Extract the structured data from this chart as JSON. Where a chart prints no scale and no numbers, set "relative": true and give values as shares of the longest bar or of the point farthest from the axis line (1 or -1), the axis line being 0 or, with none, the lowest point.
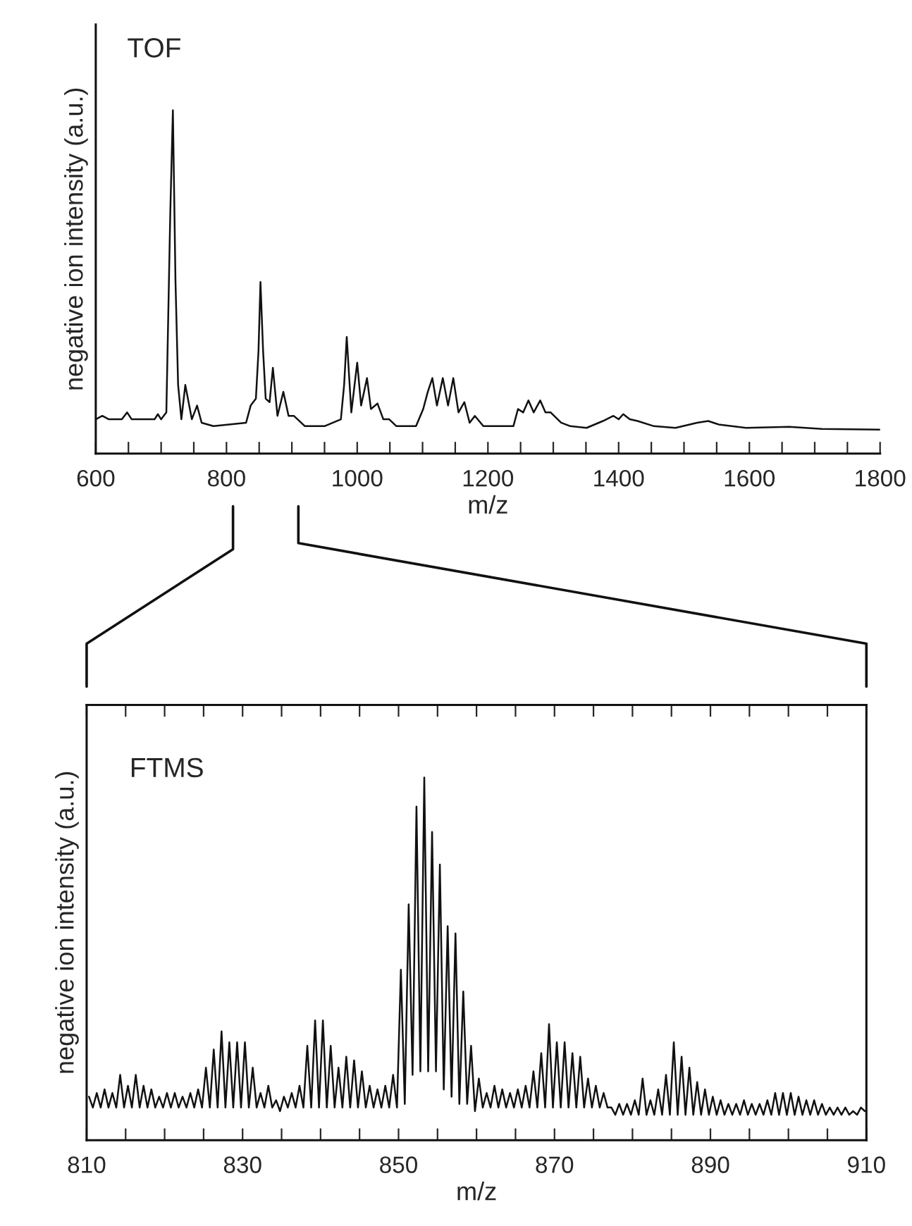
{
  "chart_data": [
    {
      "type": "line",
      "title": "TOF",
      "xlabel": "m/z",
      "ylabel": "negative ion intensity (a.u.)",
      "relative": true,
      "xlim": [
        600,
        1800
      ],
      "xticks": [
        600,
        {
          "value": 650,
          "label": null
        },
        {
          "value": 700,
          "label": null
        },
        {
          "value": 750,
          "label": null
        },
        800,
        {
          "value": 850,
          "label": null
        },
        {
          "value": 900,
          "label": null
        },
        {
          "value": 950,
          "label": null
        },
        1000,
        {
          "value": 1050,
          "label": null
        },
        {
          "value": 1100,
          "label": null
        },
        {
          "value": 1150,
          "label": null
        },
        1200,
        {
          "value": 1250,
          "label": null
        },
        {
          "value": 1300,
          "label": null
        },
        {
          "value": 1350,
          "label": null
        },
        1400,
        {
          "value": 1450,
          "label": null
        },
        {
          "value": 1500,
          "label": null
        },
        {
          "value": 1550,
          "label": null
        },
        1600,
        {
          "value": 1650,
          "label": null
        },
        {
          "value": 1700,
          "label": null
        },
        {
          "value": 1750,
          "label": null
        },
        1800
      ],
      "series": [
        {
          "color": "#111111",
          "x": [
            600,
            610,
            620,
            640,
            648,
            655,
            690,
            695,
            700,
            708,
            714,
            718,
            722,
            726,
            731,
            737,
            747,
            755,
            762,
            780,
            830,
            837,
            845,
            849,
            852,
            856,
            860,
            866,
            871,
            878,
            887,
            895,
            903,
            920,
            950,
            975,
            980,
            984,
            991,
            1000,
            1006,
            1015,
            1021,
            1031,
            1040,
            1049,
            1060,
            1090,
            1101,
            1108,
            1115,
            1122,
            1131,
            1139,
            1147,
            1155,
            1164,
            1172,
            1180,
            1193,
            1239,
            1246,
            1254,
            1262,
            1270,
            1280,
            1288,
            1296,
            1312,
            1326,
            1351,
            1376,
            1392,
            1400,
            1407,
            1417,
            1429,
            1454,
            1487,
            1520,
            1537,
            1553,
            1595,
            1661,
            1711,
            1800
          ],
          "values": [
            0.1,
            0.11,
            0.1,
            0.1,
            0.12,
            0.1,
            0.1,
            0.115,
            0.1,
            0.12,
            0.7,
            1.0,
            0.5,
            0.2,
            0.1,
            0.2,
            0.1,
            0.14,
            0.09,
            0.08,
            0.09,
            0.14,
            0.16,
            0.3,
            0.5,
            0.3,
            0.16,
            0.15,
            0.25,
            0.11,
            0.18,
            0.11,
            0.11,
            0.08,
            0.08,
            0.1,
            0.2,
            0.34,
            0.12,
            0.265,
            0.14,
            0.22,
            0.13,
            0.146,
            0.1,
            0.1,
            0.08,
            0.08,
            0.13,
            0.18,
            0.22,
            0.14,
            0.22,
            0.14,
            0.22,
            0.12,
            0.15,
            0.09,
            0.11,
            0.08,
            0.08,
            0.13,
            0.12,
            0.155,
            0.12,
            0.155,
            0.12,
            0.12,
            0.09,
            0.08,
            0.075,
            0.095,
            0.11,
            0.1,
            0.115,
            0.1,
            0.095,
            0.08,
            0.075,
            0.09,
            0.095,
            0.085,
            0.075,
            0.078,
            0.072,
            0.07
          ]
        }
      ]
    },
    {
      "type": "line",
      "title": "FTMS",
      "xlabel": "m/z",
      "ylabel": "negative ion intensity (a.u.)",
      "relative": true,
      "xlim": [
        810,
        910
      ],
      "xticks": [
        810,
        {
          "value": 815,
          "label": null
        },
        {
          "value": 820,
          "label": null
        },
        {
          "value": 825,
          "label": null
        },
        830,
        {
          "value": 835,
          "label": null
        },
        {
          "value": 840,
          "label": null
        },
        {
          "value": 845,
          "label": null
        },
        850,
        {
          "value": 855,
          "label": null
        },
        {
          "value": 860,
          "label": null
        },
        {
          "value": 865,
          "label": null
        },
        870,
        {
          "value": 875,
          "label": null
        },
        {
          "value": 880,
          "label": null
        },
        {
          "value": 885,
          "label": null
        },
        890,
        {
          "value": 895,
          "label": null
        },
        {
          "value": 900,
          "label": null
        },
        {
          "value": 905,
          "label": null
        },
        910
      ],
      "series": [
        {
          "color": "#111111",
          "x": [
            810.3,
            810.8,
            811.3,
            811.8,
            812.3,
            812.8,
            813.3,
            813.8,
            814.3,
            814.8,
            815.3,
            815.8,
            816.3,
            816.8,
            817.3,
            817.8,
            818.3,
            818.8,
            819.3,
            819.8,
            820.3,
            820.8,
            821.3,
            821.8,
            822.3,
            822.8,
            823.3,
            823.8,
            824.3,
            824.8,
            825.3,
            825.8,
            826.3,
            826.8,
            827.3,
            827.8,
            828.3,
            828.8,
            829.3,
            829.8,
            830.3,
            830.8,
            831.3,
            831.8,
            832.3,
            832.8,
            833.3,
            833.8,
            834.3,
            834.8,
            835.3,
            835.8,
            836.3,
            836.8,
            837.3,
            837.8,
            838.3,
            838.8,
            839.3,
            839.8,
            840.3,
            840.8,
            841.3,
            841.8,
            842.3,
            842.8,
            843.3,
            843.8,
            844.3,
            844.8,
            845.3,
            845.8,
            846.3,
            846.8,
            847.3,
            847.8,
            848.3,
            848.8,
            849.3,
            849.8,
            850.3,
            850.8,
            851.3,
            851.8,
            852.3,
            852.8,
            853.3,
            853.8,
            854.3,
            854.8,
            855.3,
            855.8,
            856.3,
            856.8,
            857.3,
            857.8,
            858.3,
            858.8,
            859.3,
            859.8,
            860.3,
            860.8,
            861.3,
            861.8,
            862.3,
            862.8,
            863.3,
            863.8,
            864.3,
            864.8,
            865.3,
            865.8,
            866.3,
            866.8,
            867.3,
            867.8,
            868.3,
            868.8,
            869.3,
            869.8,
            870.3,
            870.8,
            871.3,
            871.8,
            872.3,
            872.8,
            873.3,
            873.8,
            874.3,
            874.8,
            875.3,
            875.8,
            876.3,
            876.8,
            877.3,
            877.8,
            878.3,
            878.8,
            879.3,
            879.8,
            880.3,
            880.8,
            881.3,
            881.8,
            882.3,
            882.8,
            883.3,
            883.8,
            884.3,
            884.8,
            885.3,
            885.8,
            886.3,
            886.8,
            887.3,
            887.8,
            888.3,
            888.8,
            889.3,
            889.8,
            890.3,
            890.8,
            891.3,
            891.8,
            892.3,
            892.8,
            893.3,
            893.8,
            894.3,
            894.8,
            895.3,
            895.8,
            896.3,
            896.8,
            897.3,
            897.8,
            898.3,
            898.8,
            899.3,
            899.8,
            900.3,
            900.8,
            901.3,
            901.8,
            902.3,
            902.8,
            903.3,
            903.8,
            904.3,
            904.8,
            905.3,
            905.8,
            906.3,
            906.8,
            907.3,
            907.8,
            908.3,
            908.8,
            909.3,
            909.8
          ],
          "values": [
            0.12,
            0.09,
            0.13,
            0.09,
            0.14,
            0.09,
            0.13,
            0.09,
            0.18,
            0.09,
            0.15,
            0.09,
            0.18,
            0.09,
            0.15,
            0.09,
            0.14,
            0.09,
            0.12,
            0.09,
            0.13,
            0.09,
            0.13,
            0.09,
            0.12,
            0.09,
            0.13,
            0.09,
            0.14,
            0.09,
            0.2,
            0.09,
            0.25,
            0.09,
            0.3,
            0.09,
            0.27,
            0.09,
            0.27,
            0.09,
            0.27,
            0.09,
            0.2,
            0.09,
            0.13,
            0.09,
            0.15,
            0.09,
            0.11,
            0.08,
            0.12,
            0.09,
            0.13,
            0.09,
            0.15,
            0.09,
            0.26,
            0.09,
            0.33,
            0.09,
            0.33,
            0.09,
            0.26,
            0.09,
            0.2,
            0.09,
            0.23,
            0.09,
            0.22,
            0.09,
            0.19,
            0.09,
            0.15,
            0.09,
            0.14,
            0.09,
            0.15,
            0.09,
            0.18,
            0.09,
            0.47,
            0.1,
            0.65,
            0.18,
            0.92,
            0.19,
            1.0,
            0.19,
            0.85,
            0.19,
            0.76,
            0.14,
            0.59,
            0.12,
            0.57,
            0.1,
            0.41,
            0.1,
            0.26,
            0.08,
            0.17,
            0.09,
            0.13,
            0.09,
            0.15,
            0.09,
            0.14,
            0.09,
            0.13,
            0.09,
            0.14,
            0.09,
            0.15,
            0.09,
            0.19,
            0.09,
            0.24,
            0.09,
            0.32,
            0.09,
            0.27,
            0.09,
            0.27,
            0.09,
            0.24,
            0.09,
            0.23,
            0.09,
            0.17,
            0.09,
            0.15,
            0.09,
            0.13,
            0.09,
            0.09,
            0.07,
            0.1,
            0.07,
            0.1,
            0.07,
            0.11,
            0.07,
            0.17,
            0.07,
            0.11,
            0.07,
            0.14,
            0.07,
            0.18,
            0.07,
            0.27,
            0.07,
            0.23,
            0.07,
            0.2,
            0.07,
            0.16,
            0.07,
            0.14,
            0.07,
            0.12,
            0.07,
            0.11,
            0.07,
            0.1,
            0.07,
            0.1,
            0.07,
            0.11,
            0.07,
            0.1,
            0.07,
            0.1,
            0.07,
            0.11,
            0.07,
            0.13,
            0.07,
            0.13,
            0.07,
            0.13,
            0.07,
            0.12,
            0.07,
            0.11,
            0.07,
            0.11,
            0.07,
            0.1,
            0.07,
            0.09,
            0.07,
            0.09,
            0.07,
            0.09,
            0.07,
            0.08,
            0.07,
            0.09,
            0.08
          ]
        }
      ]
    }
  ]
}
